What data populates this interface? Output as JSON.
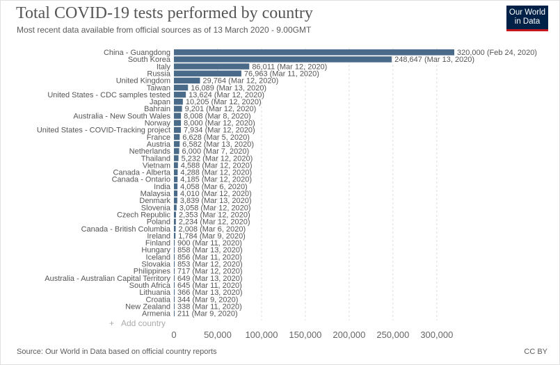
{
  "header": {
    "title": "Total COVID-19 tests performed by country",
    "subtitle": "Most recent data available from official sources as of 13 March 2020 - 9.00GMT",
    "logo_line1": "Our World",
    "logo_line2": "in Data"
  },
  "controls": {
    "add_country_label": "Add country",
    "add_country_icon": "plus-icon"
  },
  "footer": {
    "source": "Source: Our World in Data based on official country reports",
    "license": "CC BY"
  },
  "colors": {
    "bar": "#4a6a8a",
    "logo_bg": "#002147",
    "logo_accent": "#c4161c"
  },
  "chart_data": {
    "type": "bar",
    "orientation": "horizontal",
    "title": "Total COVID-19 tests performed by country",
    "xlim": [
      0,
      320000
    ],
    "x_ticks": [
      0,
      50000,
      100000,
      150000,
      200000,
      250000,
      300000
    ],
    "x_tick_labels": [
      "0",
      "50,000",
      "100,000",
      "150,000",
      "200,000",
      "250,000",
      "300,000"
    ],
    "grid": "vertical-dashed",
    "categories": [
      "China - Guangdong",
      "South Korea",
      "Italy",
      "Russia",
      "United Kingdom",
      "Taiwan",
      "United States - CDC samples tested",
      "Japan",
      "Bahrain",
      "Australia - New South Wales",
      "Norway",
      "United States - COVID-Tracking project",
      "France",
      "Austria",
      "Netherlands",
      "Thailand",
      "Vietnam",
      "Canada - Alberta",
      "Canada - Ontario",
      "India",
      "Malaysia",
      "Denmark",
      "Slovenia",
      "Czech Republic",
      "Poland",
      "Canada - British Columbia",
      "Ireland",
      "Finland",
      "Hungary",
      "Iceland",
      "Slovakia",
      "Philippines",
      "Australia - Australian Capital Territory",
      "South Africa",
      "Lithuania",
      "Croatia",
      "New Zealand",
      "Armenia"
    ],
    "values": [
      320000,
      248647,
      86011,
      76963,
      29764,
      16089,
      13624,
      10205,
      9201,
      8008,
      8000,
      7934,
      6628,
      6582,
      6000,
      5232,
      4588,
      4288,
      4185,
      4058,
      4010,
      3839,
      3058,
      2353,
      2234,
      2008,
      1784,
      900,
      858,
      856,
      853,
      717,
      649,
      645,
      366,
      344,
      338,
      211
    ],
    "value_labels": [
      "320,000 (Feb 24, 2020)",
      "248,647 (Mar 13, 2020)",
      "86,011 (Mar 12, 2020)",
      "76,963 (Mar 11, 2020)",
      "29,764 (Mar 12, 2020)",
      "16,089 (Mar 13, 2020)",
      "13,624 (Mar 12, 2020)",
      "10,205 (Mar 12, 2020)",
      "9,201 (Mar 12, 2020)",
      "8,008 (Mar 8, 2020)",
      "8,000 (Mar 12, 2020)",
      "7,934 (Mar 12, 2020)",
      "6,628 (Mar 5, 2020)",
      "6,582 (Mar 13, 2020)",
      "6,000 (Mar 7, 2020)",
      "5,232 (Mar 12, 2020)",
      "4,588 (Mar 12, 2020)",
      "4,288 (Mar 12, 2020)",
      "4,185 (Mar 12, 2020)",
      "4,058 (Mar 6, 2020)",
      "4,010 (Mar 12, 2020)",
      "3,839 (Mar 13, 2020)",
      "3,058 (Mar 12, 2020)",
      "2,353 (Mar 12, 2020)",
      "2,234 (Mar 12, 2020)",
      "2,008 (Mar 6, 2020)",
      "1,784 (Mar 9, 2020)",
      "900 (Mar 11, 2020)",
      "858 (Mar 13, 2020)",
      "856 (Mar 11, 2020)",
      "853 (Mar 12, 2020)",
      "717 (Mar 12, 2020)",
      "649 (Mar 13, 2020)",
      "645 (Mar 11, 2020)",
      "366 (Mar 13, 2020)",
      "344 (Mar 9, 2020)",
      "338 (Mar 11, 2020)",
      "211 (Mar 9, 2020)"
    ]
  }
}
